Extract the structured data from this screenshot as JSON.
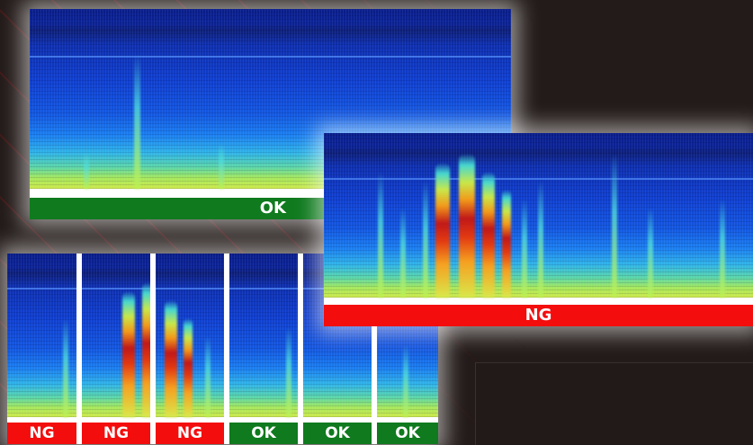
{
  "panels": {
    "top_left": {
      "status": "OK",
      "status_color": "#0f7a1e"
    },
    "right": {
      "status": "NG",
      "status_color": "#f40d0d"
    },
    "strip": {
      "items": [
        {
          "status": "NG"
        },
        {
          "status": "NG"
        },
        {
          "status": "NG"
        },
        {
          "status": "OK"
        },
        {
          "status": "OK"
        },
        {
          "status": "OK"
        }
      ]
    }
  },
  "colors": {
    "ok": "#0f7a1e",
    "ng": "#f40d0d",
    "background": "#231b19"
  }
}
